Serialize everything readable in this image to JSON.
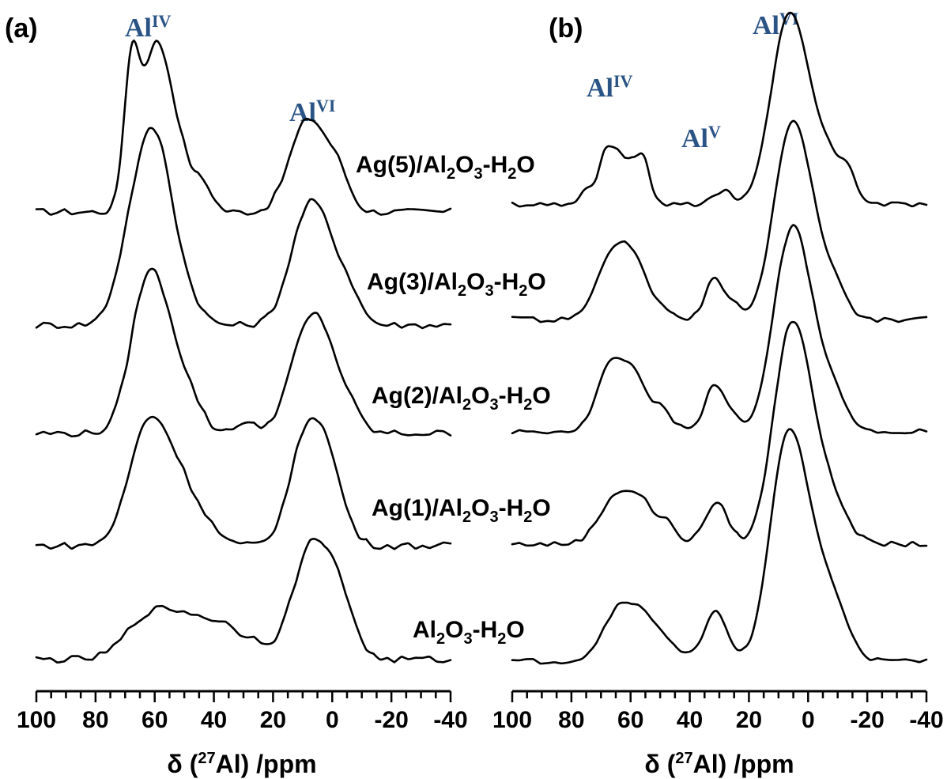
{
  "chart_data": [
    {
      "type": "line",
      "panel_label": "(a)",
      "peak_labels": [
        {
          "text": "Al",
          "sup": "IV",
          "ppm": 62
        },
        {
          "text": "Al",
          "sup": "VI",
          "ppm": 7
        }
      ],
      "xlabel": {
        "pre": "δ (",
        "sup": "27",
        "post": "Al) /ppm"
      },
      "xlim": [
        100,
        -40
      ],
      "xticks": [
        100,
        80,
        60,
        40,
        20,
        0,
        -20,
        -40
      ],
      "xtick_labels": [
        "100",
        "80",
        "60",
        "40",
        "20",
        "0",
        "-20",
        "-40"
      ],
      "series": [
        {
          "name_parts": [
            "Ag(5)/Al",
            "2",
            "O",
            "3",
            "-H",
            "2",
            "O"
          ],
          "peaks": [
            {
              "c": 68,
              "h": 0.62,
              "w": 2.5
            },
            {
              "c": 60,
              "h": 0.78,
              "w": 5
            },
            {
              "c": 52,
              "h": 0.25,
              "w": 5
            },
            {
              "c": 43,
              "h": 0.1,
              "w": 3
            },
            {
              "c": 12,
              "h": 0.22,
              "w": 5
            },
            {
              "c": 6,
              "h": 0.33,
              "w": 5
            },
            {
              "c": -2,
              "h": 0.18,
              "w": 4
            }
          ]
        },
        {
          "name_parts": [
            "Ag(3)/Al",
            "2",
            "O",
            "3",
            "-H",
            "2",
            "O"
          ],
          "peaks": [
            {
              "c": 65,
              "h": 0.65,
              "w": 6
            },
            {
              "c": 58,
              "h": 0.55,
              "w": 5
            },
            {
              "c": 50,
              "h": 0.15,
              "w": 5
            },
            {
              "c": 9,
              "h": 0.45,
              "w": 6
            },
            {
              "c": 2,
              "h": 0.28,
              "w": 6
            },
            {
              "c": -6,
              "h": 0.1,
              "w": 4
            }
          ]
        },
        {
          "name_parts": [
            "Ag(2)/Al",
            "2",
            "O",
            "3",
            "-H",
            "2",
            "O"
          ],
          "peaks": [
            {
              "c": 63,
              "h": 0.7,
              "w": 5.5
            },
            {
              "c": 55,
              "h": 0.35,
              "w": 5
            },
            {
              "c": 47,
              "h": 0.12,
              "w": 4
            },
            {
              "c": 30,
              "h": 0.05,
              "w": 4
            },
            {
              "c": 9,
              "h": 0.45,
              "w": 6
            },
            {
              "c": 2,
              "h": 0.28,
              "w": 5
            },
            {
              "c": -6,
              "h": 0.1,
              "w": 4
            }
          ]
        },
        {
          "name_parts": [
            "Ag(1)/Al",
            "2",
            "O",
            "3",
            "-H",
            "2",
            "O"
          ],
          "peaks": [
            {
              "c": 62,
              "h": 0.62,
              "w": 6.5
            },
            {
              "c": 52,
              "h": 0.22,
              "w": 5
            },
            {
              "c": 44,
              "h": 0.12,
              "w": 5
            },
            {
              "c": 8,
              "h": 0.58,
              "w": 6
            },
            {
              "c": 0,
              "h": 0.22,
              "w": 5
            }
          ]
        },
        {
          "name_parts": [
            "Al",
            "2",
            "O",
            "3",
            "-H",
            "2",
            "O"
          ],
          "peaks": [
            {
              "c": 64,
              "h": 0.14,
              "w": 7
            },
            {
              "c": 50,
              "h": 0.22,
              "w": 10
            },
            {
              "c": 35,
              "h": 0.1,
              "w": 6
            },
            {
              "c": 25,
              "h": 0.06,
              "w": 4
            },
            {
              "c": 8,
              "h": 0.5,
              "w": 6
            },
            {
              "c": 0,
              "h": 0.28,
              "w": 5
            },
            {
              "c": -6,
              "h": 0.1,
              "w": 4
            }
          ]
        }
      ]
    },
    {
      "type": "line",
      "panel_label": "(b)",
      "peak_labels": [
        {
          "text": "Al",
          "sup": "IV",
          "ppm": 63
        },
        {
          "text": "Al",
          "sup": "V",
          "ppm": 33
        },
        {
          "text": "Al",
          "sup": "VI",
          "ppm": 7
        }
      ],
      "xlabel": {
        "pre": "δ (",
        "sup": "27",
        "post": "Al) /ppm"
      },
      "xlim": [
        100,
        -40
      ],
      "xticks": [
        100,
        80,
        60,
        40,
        20,
        0,
        -20,
        -40
      ],
      "xtick_labels": [
        "100",
        "80",
        "60",
        "40",
        "20",
        "0",
        "-20",
        "-40"
      ],
      "series": [
        {
          "peaks": [
            {
              "c": 68,
              "h": 0.34,
              "w": 3
            },
            {
              "c": 62,
              "h": 0.26,
              "w": 3
            },
            {
              "c": 56,
              "h": 0.3,
              "w": 2.5
            },
            {
              "c": 75,
              "h": 0.08,
              "w": 2
            },
            {
              "c": 33,
              "h": 0.05,
              "w": 2
            },
            {
              "c": 28,
              "h": 0.1,
              "w": 2
            },
            {
              "c": 8,
              "h": 1.0,
              "w": 5.5
            },
            {
              "c": 1,
              "h": 0.55,
              "w": 5
            },
            {
              "c": -8,
              "h": 0.25,
              "w": 4
            },
            {
              "c": -14,
              "h": 0.18,
              "w": 2.5
            }
          ]
        },
        {
          "peaks": [
            {
              "c": 66,
              "h": 0.45,
              "w": 5
            },
            {
              "c": 58,
              "h": 0.3,
              "w": 4
            },
            {
              "c": 50,
              "h": 0.08,
              "w": 3
            },
            {
              "c": 32,
              "h": 0.25,
              "w": 3
            },
            {
              "c": 26,
              "h": 0.1,
              "w": 3
            },
            {
              "c": 7,
              "h": 1.05,
              "w": 5.5
            },
            {
              "c": 0,
              "h": 0.55,
              "w": 5
            },
            {
              "c": -9,
              "h": 0.2,
              "w": 4
            }
          ]
        },
        {
          "peaks": [
            {
              "c": 67,
              "h": 0.42,
              "w": 4.5
            },
            {
              "c": 59,
              "h": 0.32,
              "w": 4
            },
            {
              "c": 50,
              "h": 0.15,
              "w": 4
            },
            {
              "c": 32,
              "h": 0.3,
              "w": 3
            },
            {
              "c": 26,
              "h": 0.12,
              "w": 3
            },
            {
              "c": 7,
              "h": 1.1,
              "w": 5.5
            },
            {
              "c": 0,
              "h": 0.55,
              "w": 5
            },
            {
              "c": -9,
              "h": 0.25,
              "w": 4
            }
          ]
        },
        {
          "peaks": [
            {
              "c": 64,
              "h": 0.34,
              "w": 6
            },
            {
              "c": 55,
              "h": 0.18,
              "w": 4
            },
            {
              "c": 47,
              "h": 0.12,
              "w": 3
            },
            {
              "c": 31,
              "h": 0.27,
              "w": 4
            },
            {
              "c": 7,
              "h": 1.2,
              "w": 5.5
            },
            {
              "c": 0,
              "h": 0.6,
              "w": 5
            },
            {
              "c": -9,
              "h": 0.25,
              "w": 5
            }
          ]
        },
        {
          "peaks": [
            {
              "c": 63,
              "h": 0.36,
              "w": 6
            },
            {
              "c": 52,
              "h": 0.2,
              "w": 6
            },
            {
              "c": 31,
              "h": 0.32,
              "w": 4
            },
            {
              "c": 8,
              "h": 1.2,
              "w": 5.5
            },
            {
              "c": 0,
              "h": 0.7,
              "w": 6
            },
            {
              "c": -10,
              "h": 0.25,
              "w": 5
            }
          ]
        }
      ]
    }
  ]
}
